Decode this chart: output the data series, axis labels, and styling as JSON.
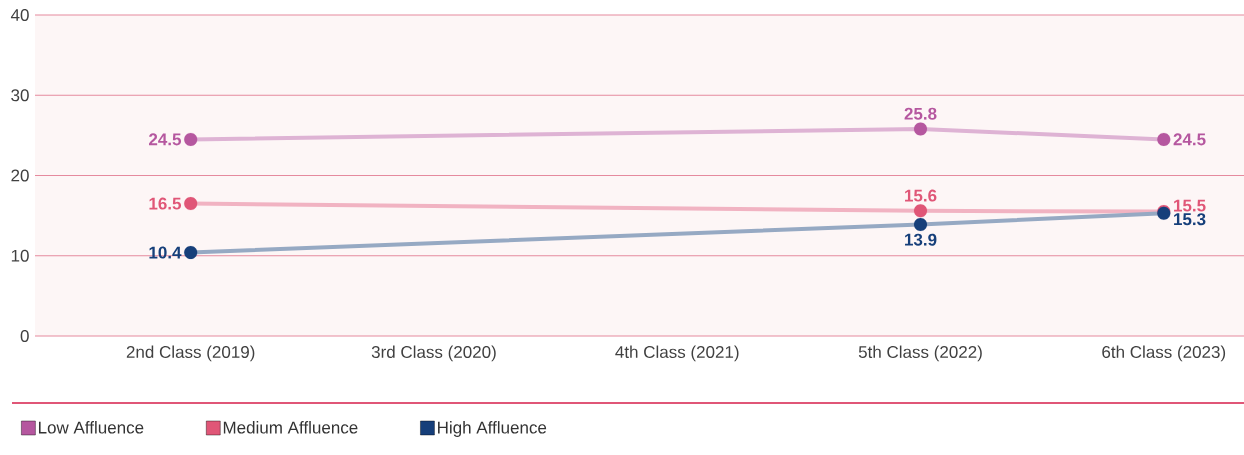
{
  "chart_data": {
    "type": "line",
    "categories": [
      "2nd Class (2019)",
      "3rd Class (2020)",
      "4th Class (2021)",
      "5th Class (2022)",
      "6th Class (2023)"
    ],
    "series": [
      {
        "name": "Low Affluence",
        "color": "#b5579f",
        "values": [
          24.5,
          null,
          null,
          25.8,
          24.5
        ]
      },
      {
        "name": "Medium Affluence",
        "color": "#e05677",
        "values": [
          16.5,
          null,
          null,
          15.6,
          15.5
        ]
      },
      {
        "name": "High Affluence",
        "color": "#163f7a",
        "values": [
          10.4,
          null,
          null,
          13.9,
          15.3
        ]
      }
    ],
    "ylim": [
      0,
      40
    ],
    "yticks": [
      0,
      10,
      20,
      30,
      40
    ],
    "grid": "y",
    "legend": "bottom left",
    "marker": "circle",
    "data_labels": true
  }
}
